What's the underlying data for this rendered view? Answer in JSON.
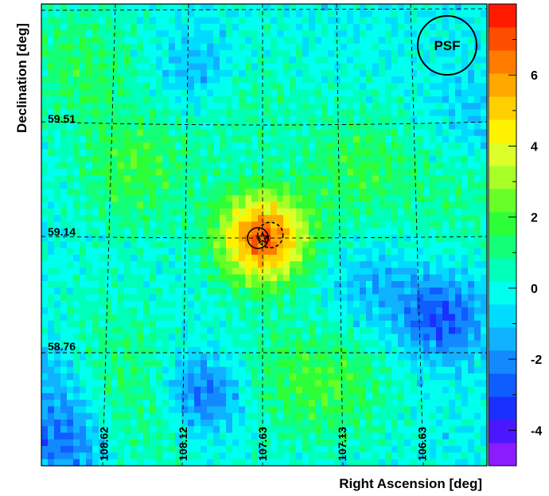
{
  "chart_data": {
    "type": "heatmap",
    "title": "",
    "xlabel": "Right Ascension [deg]",
    "ylabel": "Declination [deg]",
    "x_axis_direction": "decreasing-to-right",
    "ra_grid_labels": [
      "108.62",
      "108.12",
      "107.63",
      "107.13",
      "106.63"
    ],
    "dec_grid_labels": [
      "59.51",
      "59.14",
      "58.76"
    ],
    "colorbar": {
      "ticks": [
        -4,
        -2,
        0,
        2,
        4,
        6
      ],
      "tick_labels": [
        "-4",
        "-2",
        "0",
        "2",
        "4",
        "6"
      ],
      "range": [
        -5,
        8
      ],
      "colors": [
        "#8a1cff",
        "#4b17ff",
        "#1b2fff",
        "#0f5cff",
        "#1289ff",
        "#10b2ff",
        "#00dcff",
        "#00ffee",
        "#00ffb8",
        "#14ff78",
        "#2cff38",
        "#66ff2a",
        "#a8ff28",
        "#dcff2a",
        "#fff200",
        "#ffd000",
        "#ffa800",
        "#ff7c00",
        "#ff4d00",
        "#ff1a00"
      ]
    },
    "hotspot": {
      "ra": 107.63,
      "dec": 59.14,
      "peak": 7.0
    },
    "markers": [
      {
        "type": "star",
        "ra": 107.63,
        "dec": 59.14
      },
      {
        "type": "solid-circle",
        "ra": 107.66,
        "dec": 59.14
      },
      {
        "type": "dashed-circle",
        "ra": 107.58,
        "dec": 59.15
      }
    ],
    "psf_label": "PSF",
    "grid": true
  }
}
